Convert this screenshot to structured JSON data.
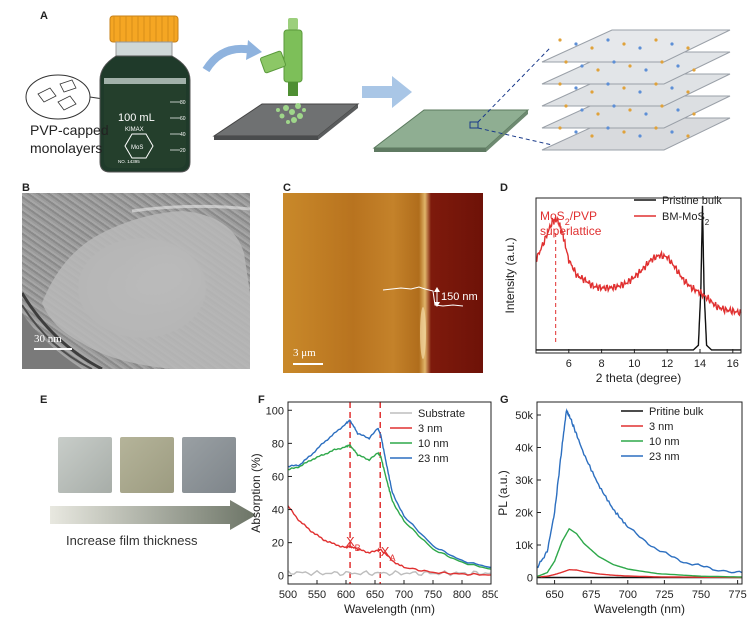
{
  "panels": {
    "A": "A",
    "B": "B",
    "C": "C",
    "D": "D",
    "E": "E",
    "F": "F",
    "G": "G"
  },
  "panelA": {
    "bottle_volume": "100 mL",
    "bottle_brand": "KIMAX",
    "bottle_no": "NO. 14395",
    "bottle_logo": "MoS",
    "bottle_marks": [
      "80",
      "60",
      "40",
      "20"
    ],
    "inset_label_line1": "PVP-capped",
    "inset_label_line2": "monolayers"
  },
  "panelB": {
    "scale": "30 nm"
  },
  "panelC": {
    "scale": "3 μm",
    "height_label": "150 nm"
  },
  "panelE": {
    "caption": "Increase film thickness"
  },
  "colors": {
    "red": "#e03030",
    "green": "#2ea84a",
    "blue": "#2c6fc0",
    "gray": "#bdbdbd",
    "black": "#111111",
    "dash": "#e03030"
  },
  "chart_data": [
    {
      "panel": "D",
      "type": "line",
      "xlabel": "2 theta (degree)",
      "ylabel": "Intensity (a.u.)",
      "xlim": [
        4,
        16.5
      ],
      "xticks": [
        6,
        8,
        10,
        12,
        14,
        16
      ],
      "annotation_line1": "MoS",
      "annotation_sub": "2",
      "annotation_line1_rest": "/PVP",
      "annotation_line2": "superlattice",
      "annotation_x": 5.2,
      "series": [
        {
          "name": "Pristine bulk",
          "color": "#111111",
          "x": [
            4,
            13.6,
            13.9,
            14.05,
            14.15,
            14.25,
            14.4,
            14.7,
            16.5
          ],
          "y": [
            0.02,
            0.02,
            0.05,
            0.4,
            0.95,
            0.4,
            0.05,
            0.02,
            0.02
          ]
        },
        {
          "name": "BM-MoS",
          "name_sub": "2",
          "color": "#e03030",
          "x": [
            4,
            4.5,
            5,
            5.3,
            5.6,
            6,
            6.5,
            7,
            7.5,
            8,
            8.5,
            9,
            9.5,
            10,
            10.5,
            11,
            11.5,
            12,
            12.5,
            13,
            13.5,
            14,
            14.5,
            15,
            15.5,
            16,
            16.5
          ],
          "y": [
            0.6,
            0.72,
            0.85,
            0.86,
            0.78,
            0.6,
            0.5,
            0.47,
            0.43,
            0.42,
            0.42,
            0.43,
            0.45,
            0.49,
            0.54,
            0.6,
            0.63,
            0.62,
            0.55,
            0.47,
            0.42,
            0.39,
            0.35,
            0.3,
            0.28,
            0.27,
            0.26
          ]
        }
      ]
    },
    {
      "panel": "F",
      "type": "line",
      "xlabel": "Wavelength (nm)",
      "ylabel": "Absorption (%)",
      "xlim": [
        500,
        850
      ],
      "ylim": [
        -5,
        105
      ],
      "xticks": [
        500,
        550,
        600,
        650,
        700,
        750,
        800,
        850
      ],
      "yticks": [
        0,
        20,
        40,
        60,
        80,
        100
      ],
      "dash_lines": [
        607,
        659
      ],
      "labels": [
        {
          "text": "X",
          "sub": "B",
          "x": 600,
          "y": 18
        },
        {
          "text": "X",
          "sub": "A",
          "x": 660,
          "y": 12
        }
      ],
      "series": [
        {
          "name": "Substrate",
          "color": "#bdbdbd",
          "x": [
            500,
            550,
            600,
            650,
            700,
            750,
            800,
            850
          ],
          "y": [
            2,
            1.5,
            1.5,
            1.5,
            1.5,
            1.5,
            1.5,
            1.5
          ]
        },
        {
          "name": "3 nm",
          "color": "#e03030",
          "x": [
            500,
            520,
            540,
            560,
            580,
            600,
            607,
            620,
            640,
            655,
            660,
            680,
            700,
            750,
            800,
            850
          ],
          "y": [
            42,
            33,
            27,
            22,
            19,
            17,
            18,
            16,
            14,
            15,
            16,
            9,
            5,
            2,
            1,
            0.5
          ]
        },
        {
          "name": "10 nm",
          "color": "#2ea84a",
          "x": [
            500,
            520,
            540,
            560,
            580,
            600,
            607,
            620,
            640,
            655,
            660,
            670,
            680,
            700,
            750,
            800,
            850
          ],
          "y": [
            64,
            66,
            70,
            73,
            76,
            78,
            79,
            73,
            70,
            74,
            72,
            58,
            45,
            33,
            16,
            8,
            4
          ]
        },
        {
          "name": "23 nm",
          "color": "#2c6fc0",
          "x": [
            500,
            520,
            540,
            560,
            580,
            600,
            607,
            620,
            640,
            655,
            660,
            670,
            680,
            700,
            750,
            800,
            850
          ],
          "y": [
            66,
            67,
            73,
            80,
            86,
            92,
            94,
            86,
            83,
            89,
            85,
            67,
            50,
            36,
            18,
            9,
            5
          ]
        }
      ]
    },
    {
      "panel": "G",
      "type": "line",
      "xlabel": "Wavelength (nm)",
      "ylabel": "PL (a.u.)",
      "xlim": [
        638,
        778
      ],
      "ylim": [
        -2000,
        54000
      ],
      "xticks": [
        650,
        675,
        700,
        725,
        750,
        775
      ],
      "yticks": [
        0,
        10000,
        20000,
        30000,
        40000,
        50000
      ],
      "ytick_labels": [
        "0",
        "10k",
        "20k",
        "30k",
        "40k",
        "50k"
      ],
      "series": [
        {
          "name": "Pritine bulk",
          "color": "#111111",
          "x": [
            638,
            778
          ],
          "y": [
            0,
            0
          ]
        },
        {
          "name": "3 nm",
          "color": "#e03030",
          "x": [
            638,
            645,
            650,
            655,
            660,
            665,
            670,
            680,
            690,
            700,
            720,
            750,
            778
          ],
          "y": [
            100,
            400,
            900,
            1600,
            2400,
            2300,
            1800,
            1100,
            700,
            450,
            200,
            80,
            30
          ]
        },
        {
          "name": "10 nm",
          "color": "#2ea84a",
          "x": [
            638,
            645,
            650,
            655,
            660,
            665,
            670,
            680,
            690,
            700,
            720,
            750,
            778
          ],
          "y": [
            300,
            1500,
            5000,
            11000,
            15000,
            13500,
            10500,
            6500,
            4000,
            2600,
            1200,
            400,
            150
          ]
        },
        {
          "name": "23 nm",
          "color": "#2c6fc0",
          "x": [
            638,
            645,
            650,
            655,
            658,
            660,
            665,
            670,
            680,
            690,
            700,
            720,
            740,
            760,
            778
          ],
          "y": [
            3000,
            8000,
            20000,
            40000,
            51000,
            50000,
            44000,
            38000,
            28500,
            21000,
            15500,
            8500,
            4500,
            2500,
            1500
          ]
        }
      ]
    }
  ]
}
